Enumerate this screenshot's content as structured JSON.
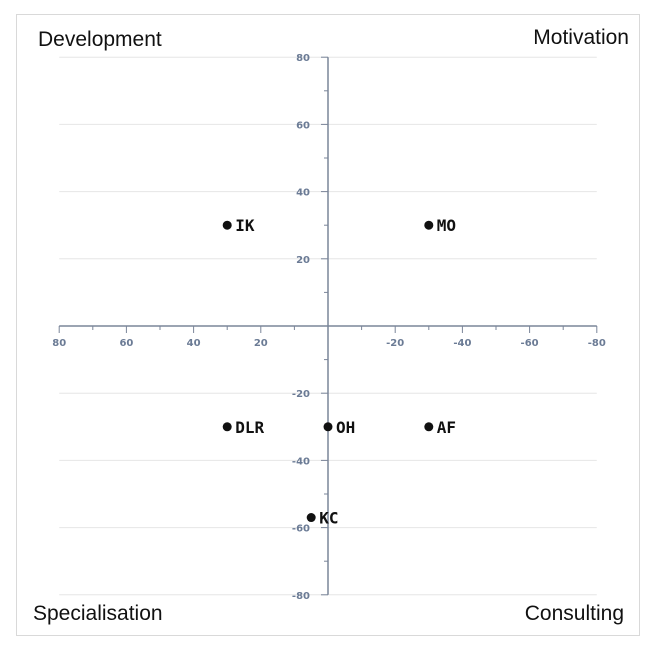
{
  "quadrant_labels": {
    "top_left": "Development",
    "top_right": "Motivation",
    "bottom_left": "Specialisation",
    "bottom_right": "Consulting"
  },
  "chart_data": {
    "type": "scatter",
    "title": "",
    "xlabel": "",
    "ylabel": "",
    "xlim": [
      80,
      -80
    ],
    "ylim": [
      -80,
      80
    ],
    "x_ticks": [
      "80",
      "60",
      "40",
      "20",
      "-20",
      "-40",
      "-60",
      "-80"
    ],
    "y_ticks": [
      "80",
      "60",
      "40",
      "20",
      "-20",
      "-40",
      "-60",
      "-80"
    ],
    "grid": "horizontal",
    "points": [
      {
        "label": "IK",
        "x": 30,
        "y": 30
      },
      {
        "label": "MO",
        "x": -30,
        "y": 30
      },
      {
        "label": "DLR",
        "x": 30,
        "y": -30
      },
      {
        "label": "OH",
        "x": 0,
        "y": -30
      },
      {
        "label": "AF",
        "x": -30,
        "y": -30
      },
      {
        "label": "KC",
        "x": 5,
        "y": -57
      }
    ],
    "colors": {
      "axis": "#7a8599",
      "tick_text": "#6b7b95",
      "grid": "#e6e6e6",
      "point": "#111111"
    }
  }
}
